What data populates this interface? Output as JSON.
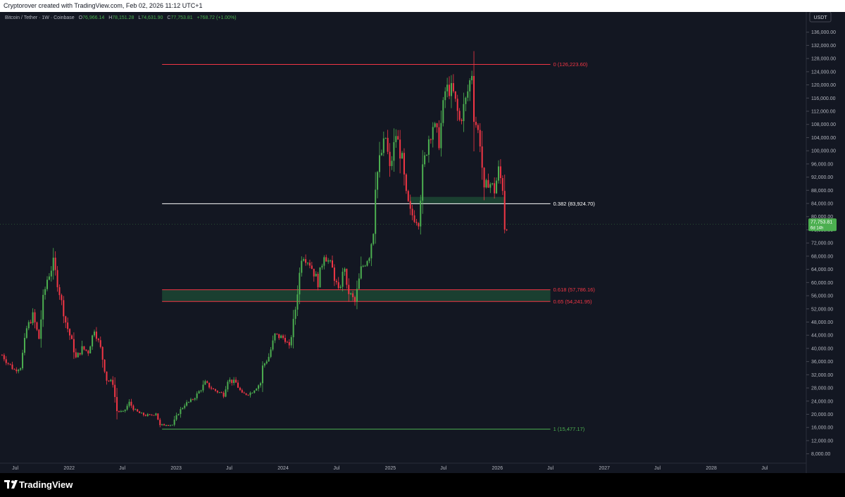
{
  "header": {
    "caption": "Cryptorover created with TradingView.com, Feb 02, 2026 11:12 UTC+1"
  },
  "legend": {
    "symbol": "Bitcoin / Tether · 1W · Coinbase",
    "open_label": "O",
    "open": "76,966.14",
    "high_label": "H",
    "high": "78,151.28",
    "low_label": "L",
    "low": "74,631.90",
    "close_label": "C",
    "close": "77,753.81",
    "change": "+768.72 (+1.00%)"
  },
  "footer": {
    "brand": "TradingView"
  },
  "chart_data": {
    "type": "candlestick",
    "currency": "USDT",
    "y_scale": "linear",
    "y_range": [
      6000,
      140000
    ],
    "x_range": [
      "2021-05-10",
      "2028-11-20"
    ],
    "grid": false,
    "y_ticks": [
      8000,
      12000,
      16000,
      20000,
      24000,
      28000,
      32000,
      36000,
      40000,
      44000,
      48000,
      52000,
      56000,
      60000,
      64000,
      68000,
      72000,
      76000,
      80000,
      84000,
      88000,
      92000,
      96000,
      100000,
      104000,
      108000,
      112000,
      116000,
      120000,
      124000,
      128000,
      132000,
      136000
    ],
    "y_tick_labels": [
      "8,000.00",
      "12,000.00",
      "16,000.00",
      "20,000.00",
      "24,000.00",
      "28,000.00",
      "32,000.00",
      "36,000.00",
      "40,000.00",
      "44,000.00",
      "48,000.00",
      "52,000.00",
      "56,000.00",
      "60,000.00",
      "64,000.00",
      "68,000.00",
      "72,000.00",
      "76,000.00",
      "80,000.00",
      "84,000.00",
      "88,000.00",
      "92,000.00",
      "96,000.00",
      "100,000.00",
      "104,000.00",
      "108,000.00",
      "112,000.00",
      "116,000.00",
      "120,000.00",
      "124,000.00",
      "128,000.00",
      "132,000.00",
      "136,000.00"
    ],
    "x_ticks": [
      {
        "label": "Jul",
        "date": "2021-07-01"
      },
      {
        "label": "2022",
        "date": "2022-01-01"
      },
      {
        "label": "Jul",
        "date": "2022-07-01"
      },
      {
        "label": "2023",
        "date": "2023-01-01"
      },
      {
        "label": "Jul",
        "date": "2023-07-01"
      },
      {
        "label": "2024",
        "date": "2024-01-01"
      },
      {
        "label": "Jul",
        "date": "2024-07-01"
      },
      {
        "label": "2025",
        "date": "2025-01-01"
      },
      {
        "label": "Jul",
        "date": "2025-07-01"
      },
      {
        "label": "2026",
        "date": "2026-01-01"
      },
      {
        "label": "Jul",
        "date": "2026-07-01"
      },
      {
        "label": "2027",
        "date": "2027-01-01"
      },
      {
        "label": "Jul",
        "date": "2027-07-01"
      },
      {
        "label": "2028",
        "date": "2028-01-01"
      },
      {
        "label": "Jul",
        "date": "2028-07-01"
      }
    ],
    "candles": [
      {
        "date": "2021-05-17",
        "close": 38000
      },
      {
        "date": "2021-06-07",
        "close": 35500
      },
      {
        "date": "2021-06-28",
        "close": 33500
      },
      {
        "date": "2021-07-19",
        "close": 34500
      },
      {
        "date": "2021-08-09",
        "close": 46000
      },
      {
        "date": "2021-08-30",
        "close": 50000
      },
      {
        "date": "2021-09-20",
        "close": 43000
      },
      {
        "date": "2021-10-04",
        "close": 55000
      },
      {
        "date": "2021-10-18",
        "close": 61000
      },
      {
        "date": "2021-11-08",
        "close": 66000
      },
      {
        "date": "2021-11-29",
        "close": 57000
      },
      {
        "date": "2021-12-20",
        "close": 48000
      },
      {
        "date": "2022-01-10",
        "close": 42000
      },
      {
        "date": "2022-01-24",
        "close": 37000
      },
      {
        "date": "2022-02-14",
        "close": 40000
      },
      {
        "date": "2022-03-07",
        "close": 39000
      },
      {
        "date": "2022-03-28",
        "close": 46000
      },
      {
        "date": "2022-04-18",
        "close": 40000
      },
      {
        "date": "2022-05-09",
        "close": 30500
      },
      {
        "date": "2022-05-30",
        "close": 29500
      },
      {
        "date": "2022-06-13",
        "close": 21000
      },
      {
        "date": "2022-07-04",
        "close": 20500
      },
      {
        "date": "2022-07-25",
        "close": 23500
      },
      {
        "date": "2022-08-15",
        "close": 21000
      },
      {
        "date": "2022-09-05",
        "close": 20000
      },
      {
        "date": "2022-10-03",
        "close": 19500
      },
      {
        "date": "2022-10-24",
        "close": 20500
      },
      {
        "date": "2022-11-07",
        "close": 16500
      },
      {
        "date": "2022-11-28",
        "close": 17000
      },
      {
        "date": "2022-12-19",
        "close": 16800
      },
      {
        "date": "2023-01-09",
        "close": 20500
      },
      {
        "date": "2023-01-30",
        "close": 23000
      },
      {
        "date": "2023-02-20",
        "close": 24000
      },
      {
        "date": "2023-03-13",
        "close": 26000
      },
      {
        "date": "2023-04-10",
        "close": 29500
      },
      {
        "date": "2023-05-08",
        "close": 27500
      },
      {
        "date": "2023-06-12",
        "close": 26000
      },
      {
        "date": "2023-06-26",
        "close": 30500
      },
      {
        "date": "2023-07-24",
        "close": 29500
      },
      {
        "date": "2023-08-14",
        "close": 26000
      },
      {
        "date": "2023-09-11",
        "close": 26500
      },
      {
        "date": "2023-10-16",
        "close": 29500
      },
      {
        "date": "2023-10-23",
        "close": 34500
      },
      {
        "date": "2023-11-13",
        "close": 37500
      },
      {
        "date": "2023-12-04",
        "close": 44000
      },
      {
        "date": "2024-01-08",
        "close": 43000
      },
      {
        "date": "2024-01-22",
        "close": 40000
      },
      {
        "date": "2024-02-12",
        "close": 52000
      },
      {
        "date": "2024-03-04",
        "close": 68000
      },
      {
        "date": "2024-03-11",
        "close": 68500
      },
      {
        "date": "2024-04-01",
        "close": 66000
      },
      {
        "date": "2024-04-29",
        "close": 60000
      },
      {
        "date": "2024-05-20",
        "close": 69000
      },
      {
        "date": "2024-06-17",
        "close": 64000
      },
      {
        "date": "2024-07-08",
        "close": 57000
      },
      {
        "date": "2024-07-29",
        "close": 65000
      },
      {
        "date": "2024-08-05",
        "close": 58000
      },
      {
        "date": "2024-09-02",
        "close": 54000
      },
      {
        "date": "2024-09-23",
        "close": 64000
      },
      {
        "date": "2024-10-21",
        "close": 68500
      },
      {
        "date": "2024-11-04",
        "close": 76000
      },
      {
        "date": "2024-11-11",
        "close": 90000
      },
      {
        "date": "2024-11-25",
        "close": 97000
      },
      {
        "date": "2024-12-16",
        "close": 104000
      },
      {
        "date": "2024-12-30",
        "close": 94000
      },
      {
        "date": "2025-01-20",
        "close": 105000
      },
      {
        "date": "2025-02-10",
        "close": 97000
      },
      {
        "date": "2025-02-24",
        "close": 86000
      },
      {
        "date": "2025-03-10",
        "close": 81000
      },
      {
        "date": "2025-04-07",
        "close": 79000
      },
      {
        "date": "2025-04-21",
        "close": 94000
      },
      {
        "date": "2025-05-12",
        "close": 104000
      },
      {
        "date": "2025-05-26",
        "close": 108000
      },
      {
        "date": "2025-06-16",
        "close": 103000
      },
      {
        "date": "2025-07-07",
        "close": 118000
      },
      {
        "date": "2025-07-21",
        "close": 119000
      },
      {
        "date": "2025-08-04",
        "close": 117000
      },
      {
        "date": "2025-08-25",
        "close": 109000
      },
      {
        "date": "2025-09-15",
        "close": 115000
      },
      {
        "date": "2025-10-06",
        "close": 124000
      },
      {
        "date": "2025-10-13",
        "close": 111000
      },
      {
        "date": "2025-11-03",
        "close": 103000
      },
      {
        "date": "2025-11-17",
        "close": 87000
      },
      {
        "date": "2025-12-01",
        "close": 91000
      },
      {
        "date": "2025-12-22",
        "close": 88000
      },
      {
        "date": "2026-01-05",
        "close": 94000
      },
      {
        "date": "2026-01-19",
        "close": 89000
      },
      {
        "date": "2026-01-26",
        "close": 77000
      },
      {
        "date": "2026-02-02",
        "close": 77753.81
      }
    ],
    "fib_levels": [
      {
        "label": "0 (126,223.60)",
        "value": 126223.6,
        "color": "#f23645"
      },
      {
        "label": "0.382 (83,924.70)",
        "value": 83924.7,
        "color": "#ffffff"
      },
      {
        "label": "0.618 (57,786.16)",
        "value": 57786.16,
        "color": "#f23645"
      },
      {
        "label": "0.65 (54,241.95)",
        "value": 54241.95,
        "color": "#f23645"
      },
      {
        "label": "1 (15,477.17)",
        "value": 15477.17,
        "color": "#4caf50"
      }
    ],
    "zones": [
      {
        "from": 54241.95,
        "to": 57786.16,
        "start": "2022-11-14",
        "end": "2028-11-20",
        "color": "#1e4d36"
      },
      {
        "from": 83924.7,
        "to": 86000,
        "start": "2025-03-10",
        "end": "2026-01-26",
        "color": "#1e4d36"
      }
    ],
    "fib_start": "2022-11-14",
    "fib_end": "2026-07-01",
    "last_price": {
      "value": 77753.81,
      "label": "77,753.81",
      "countdown": "6d 14h",
      "color": "#4caf50"
    },
    "up_color": "#4caf50",
    "down_color": "#f23645"
  }
}
